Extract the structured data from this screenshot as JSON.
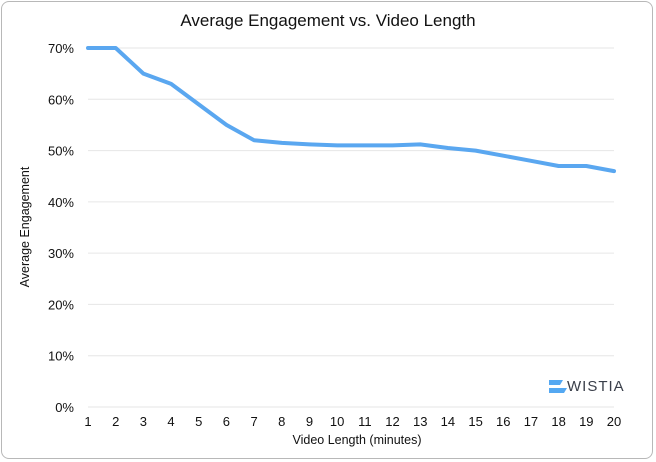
{
  "chart_data": {
    "type": "line",
    "title": "Average Engagement vs. Video Length",
    "xlabel": "Video Length (minutes)",
    "ylabel": "Average Engagement",
    "x": [
      1,
      2,
      3,
      4,
      5,
      6,
      7,
      8,
      9,
      10,
      11,
      12,
      13,
      14,
      15,
      16,
      17,
      18,
      19,
      20
    ],
    "series": [
      {
        "values": [
          70,
          70,
          65,
          63,
          59,
          55,
          52,
          51.5,
          51.2,
          51,
          51,
          51,
          51.2,
          50.5,
          50,
          49,
          48,
          47,
          47,
          46
        ]
      }
    ],
    "ylim": [
      0,
      70
    ],
    "y_ticks": [
      "0%",
      "10%",
      "20%",
      "30%",
      "40%",
      "50%",
      "60%",
      "70%"
    ],
    "y_tick_values": [
      0,
      10,
      20,
      30,
      40,
      50,
      60,
      70
    ],
    "x_ticks": [
      "1",
      "2",
      "3",
      "4",
      "5",
      "6",
      "7",
      "8",
      "9",
      "10",
      "11",
      "12",
      "13",
      "14",
      "15",
      "16",
      "17",
      "18",
      "19",
      "20"
    ],
    "grid": "horizontal",
    "line_color": "#5aa7f0",
    "grid_color": "#e6e6e6"
  },
  "watermark": {
    "text": "WISTIA",
    "icon": "wistia-logo-icon",
    "color": "#54a8f2"
  }
}
